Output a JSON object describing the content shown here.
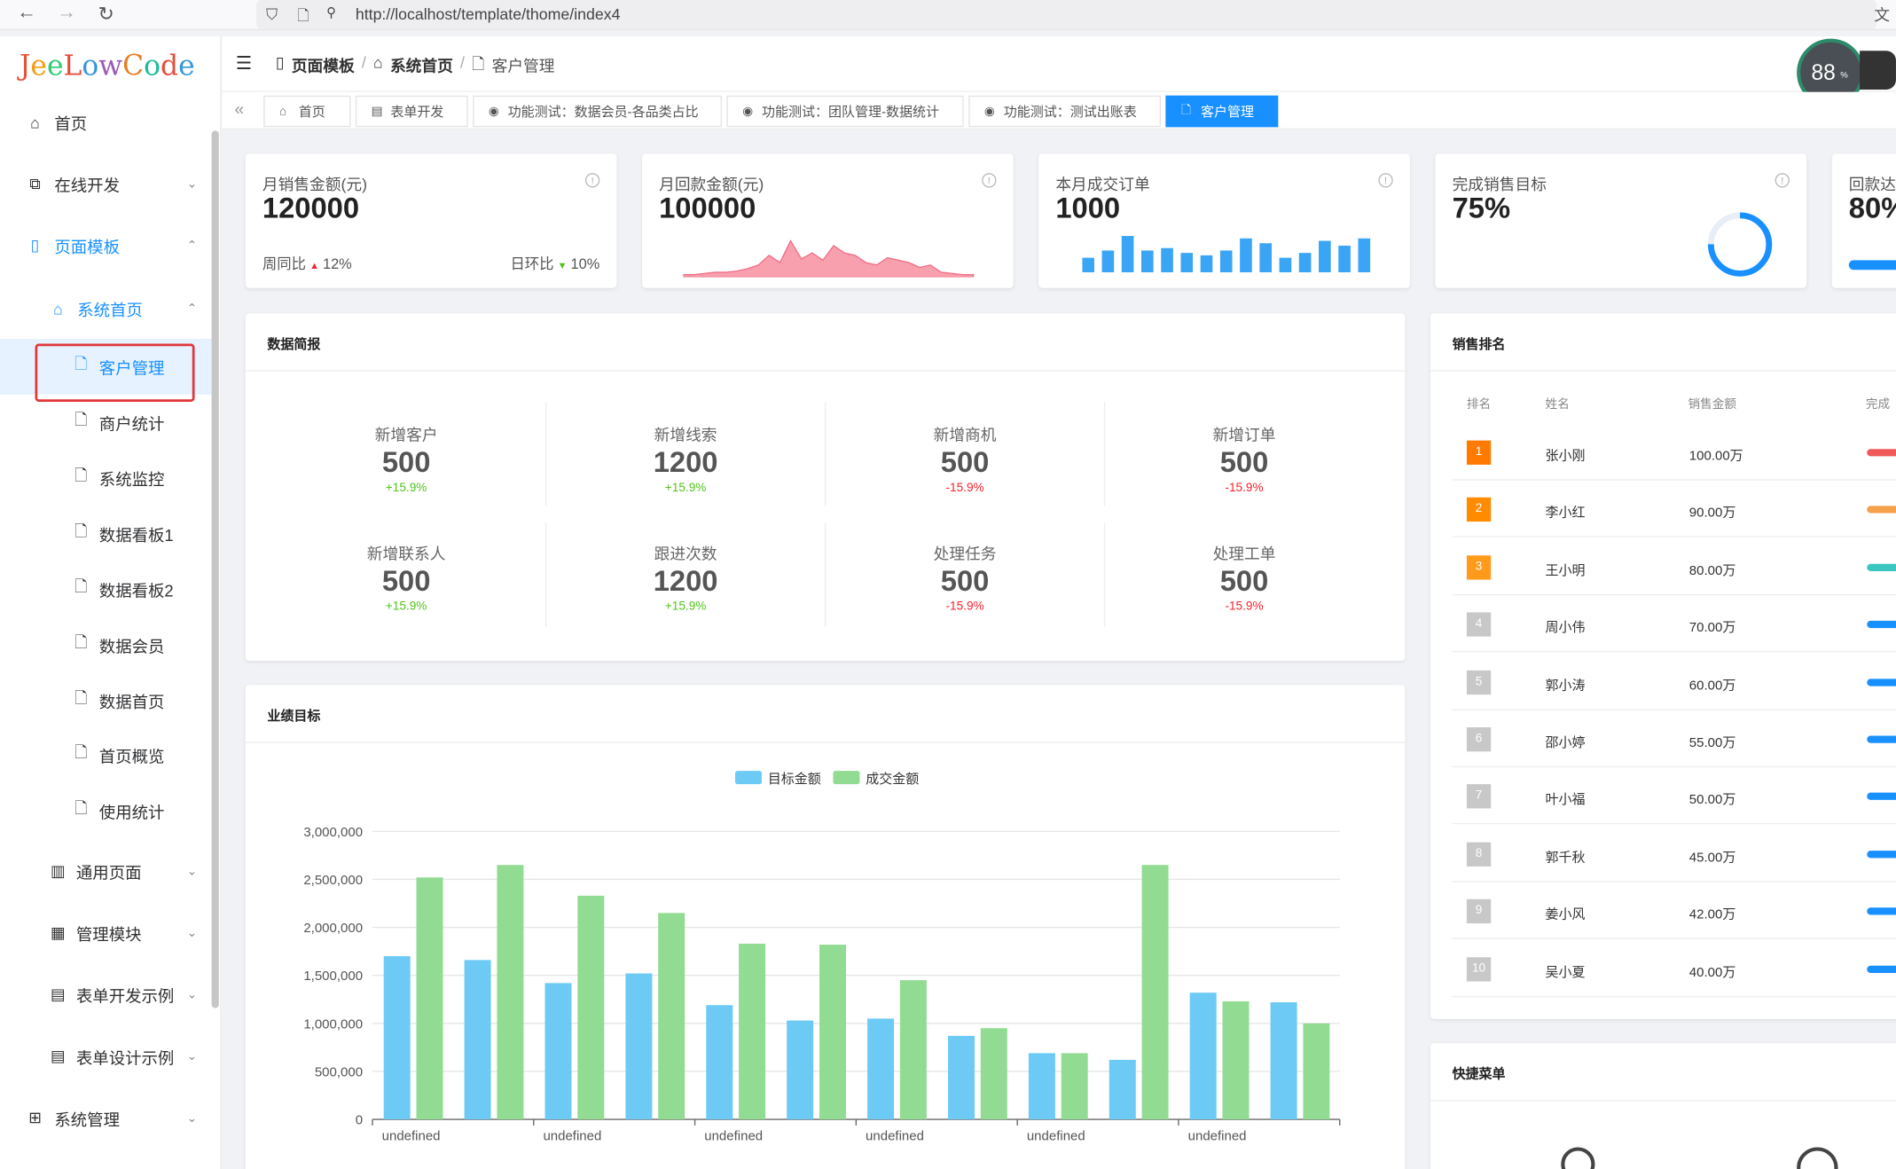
{
  "browser": {
    "url": "http://localhost/template/thome/index4"
  },
  "app": {
    "logo": "JeeLowCode",
    "cpu": "88",
    "cpu_unit": "%"
  },
  "sidebar": {
    "items": [
      {
        "label": "首页",
        "icon": "home-icon"
      },
      {
        "label": "在线开发",
        "icon": "dev-icon"
      },
      {
        "label": "页面模板",
        "icon": "tablet-icon"
      },
      {
        "label": "系统首页",
        "icon": "house-icon"
      },
      {
        "label": "客户管理",
        "icon": "file-icon"
      },
      {
        "label": "商户统计",
        "icon": "file-icon"
      },
      {
        "label": "系统监控",
        "icon": "file-icon"
      },
      {
        "label": "数据看板1",
        "icon": "file-icon"
      },
      {
        "label": "数据看板2",
        "icon": "file-icon"
      },
      {
        "label": "数据会员",
        "icon": "file-icon"
      },
      {
        "label": "数据首页",
        "icon": "file-icon"
      },
      {
        "label": "首页概览",
        "icon": "file-icon"
      },
      {
        "label": "使用统计",
        "icon": "file-icon"
      },
      {
        "label": "通用页面",
        "icon": "book-icon"
      },
      {
        "label": "管理模块",
        "icon": "grid-icon"
      },
      {
        "label": "表单开发示例",
        "icon": "form-icon"
      },
      {
        "label": "表单设计示例",
        "icon": "form-icon"
      },
      {
        "label": "系统管理",
        "icon": "apps-icon"
      }
    ]
  },
  "breadcrumb": {
    "b1": "页面模板",
    "b2": "系统首页",
    "b3": "客户管理",
    "sep": "/"
  },
  "tabs": [
    "首页",
    "表单开发",
    "功能测试：数据会员-各品类占比",
    "功能测试：团队管理-数据统计",
    "功能测试：测试出账表",
    "客户管理"
  ],
  "kpis": [
    {
      "title": "月销售金额(元)",
      "value": "120000",
      "yoy_label": "周同比",
      "yoy": "12%",
      "dod_label": "日环比",
      "dod": "10%"
    },
    {
      "title": "月回款金额(元)",
      "value": "100000"
    },
    {
      "title": "本月成交订单",
      "value": "1000"
    },
    {
      "title": "完成销售目标",
      "value": "75%",
      "progress": 0.75
    },
    {
      "title": "回款达成",
      "value": "80%",
      "progress": 0.8
    }
  ],
  "brief": {
    "title": "数据简报",
    "stats": [
      {
        "label": "新增客户",
        "value": "500",
        "pct": "+15.9%",
        "up": true
      },
      {
        "label": "新增线索",
        "value": "1200",
        "pct": "+15.9%",
        "up": true
      },
      {
        "label": "新增商机",
        "value": "500",
        "pct": "-15.9%",
        "up": false
      },
      {
        "label": "新增订单",
        "value": "500",
        "pct": "-15.9%",
        "up": false
      },
      {
        "label": "新增联系人",
        "value": "500",
        "pct": "+15.9%",
        "up": true
      },
      {
        "label": "跟进次数",
        "value": "1200",
        "pct": "+15.9%",
        "up": true
      },
      {
        "label": "处理任务",
        "value": "500",
        "pct": "-15.9%",
        "up": false
      },
      {
        "label": "处理工单",
        "value": "500",
        "pct": "-15.9%",
        "up": false
      }
    ]
  },
  "ranking": {
    "title": "销售排名",
    "headers": [
      "排名",
      "姓名",
      "销售金额",
      "完成"
    ],
    "rows": [
      {
        "rank": "1",
        "name": "张小刚",
        "amount": "100.00万",
        "color": "#ff7a00",
        "bar": "#f05a5a"
      },
      {
        "rank": "2",
        "name": "李小红",
        "amount": "90.00万",
        "color": "#ff8c00",
        "bar": "#f5a04a"
      },
      {
        "rank": "3",
        "name": "王小明",
        "amount": "80.00万",
        "color": "#ff9a1a",
        "bar": "#3cc6c0"
      },
      {
        "rank": "4",
        "name": "周小伟",
        "amount": "70.00万",
        "color": "#c8c8c8",
        "bar": "#1890ff"
      },
      {
        "rank": "5",
        "name": "郭小涛",
        "amount": "60.00万",
        "color": "#c8c8c8",
        "bar": "#1890ff"
      },
      {
        "rank": "6",
        "name": "邵小婷",
        "amount": "55.00万",
        "color": "#c8c8c8",
        "bar": "#1890ff"
      },
      {
        "rank": "7",
        "name": "叶小福",
        "amount": "50.00万",
        "color": "#c8c8c8",
        "bar": "#1890ff"
      },
      {
        "rank": "8",
        "name": "郭千秋",
        "amount": "45.00万",
        "color": "#c8c8c8",
        "bar": "#1890ff"
      },
      {
        "rank": "9",
        "name": "姜小风",
        "amount": "42.00万",
        "color": "#c8c8c8",
        "bar": "#1890ff"
      },
      {
        "rank": "10",
        "name": "吴小夏",
        "amount": "40.00万",
        "color": "#c8c8c8",
        "bar": "#1890ff"
      }
    ]
  },
  "quick": {
    "title": "快捷菜单"
  },
  "perf": {
    "title": "业绩目标"
  },
  "chart_data": {
    "type": "bar",
    "series": [
      {
        "name": "目标金额",
        "color": "#6ccaf5",
        "values": [
          1700000,
          1660000,
          1420000,
          1520000,
          1190000,
          1030000,
          1050000,
          870000,
          690000,
          620000,
          1320000,
          1220000
        ]
      },
      {
        "name": "成交金额",
        "color": "#92db93",
        "values": [
          2520000,
          2650000,
          2330000,
          2150000,
          1830000,
          1820000,
          1450000,
          950000,
          690000,
          2650000,
          1230000,
          1000000
        ]
      }
    ],
    "categories": [
      "undefined",
      "undefined",
      "undefined",
      "undefined",
      "undefined",
      "undefined",
      "undefined",
      "undefined",
      "undefined",
      "undefined",
      "undefined",
      "undefined"
    ],
    "xtick_labels": [
      "undefined",
      "undefined",
      "undefined",
      "undefined",
      "undefined",
      "undefined"
    ],
    "yticks": [
      "0",
      "500,000",
      "1,000,000",
      "1,500,000",
      "2,000,000",
      "2,500,000",
      "3,000,000"
    ],
    "ylim": [
      0,
      3000000
    ],
    "legend": "top-center"
  }
}
